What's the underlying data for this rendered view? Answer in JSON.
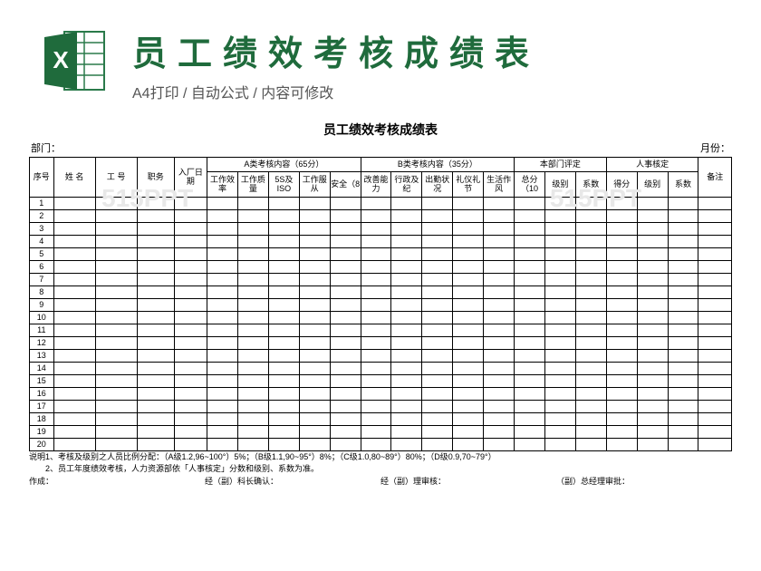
{
  "header": {
    "title": "员工绩效考核成绩表",
    "subtitle": "A4打印 / 自动公式 / 内容可修改"
  },
  "sheet": {
    "title": "员工绩效考核成绩表",
    "dept_label": "部门：",
    "month_label": "月份：",
    "columns_fixed": [
      "序号",
      "姓 名",
      "工 号",
      "职务",
      "入厂日期"
    ],
    "group_a": {
      "label": "A类考核内容（65分）",
      "subs": [
        "工作效率",
        "工作质量",
        "5S及ISO",
        "工作服从",
        "安全（8"
      ]
    },
    "group_b": {
      "label": "B类考核内容（35分）",
      "subs": [
        "改善能力",
        "行政及纪",
        "出勤状况",
        "礼仪礼节",
        "生活作风"
      ]
    },
    "group_dept": {
      "label": "本部门评定",
      "subs": [
        "总分（10",
        "级别",
        "系数"
      ]
    },
    "group_hr": {
      "label": "人事核定",
      "subs": [
        "得分",
        "级别",
        "系数"
      ]
    },
    "remark": "备注",
    "row_numbers": [
      1,
      2,
      3,
      4,
      5,
      6,
      7,
      8,
      9,
      10,
      11,
      12,
      13,
      14,
      15,
      16,
      17,
      18,
      19,
      20
    ],
    "note1": "说明1、考核及级别之人员比例分配：（A级1.2,96~100°）5%；（B级1.1,90~95°）8%；（C级1.0,80~89°）80%；（D级0.9,70~79°）",
    "note2": "　　2、员工年度绩效考核，人力资源部依「人事核定」分数和级别、系数为准。",
    "sign_make": "作成：",
    "sign_confirm": "经（副）科长确认：",
    "sign_review": "经（副）理审核：",
    "sign_approve": "（副）总经理审批："
  },
  "watermark": "515PPT",
  "colors": {
    "title": "#1f6b3c",
    "border": "#000000",
    "subtitle": "#555555"
  }
}
